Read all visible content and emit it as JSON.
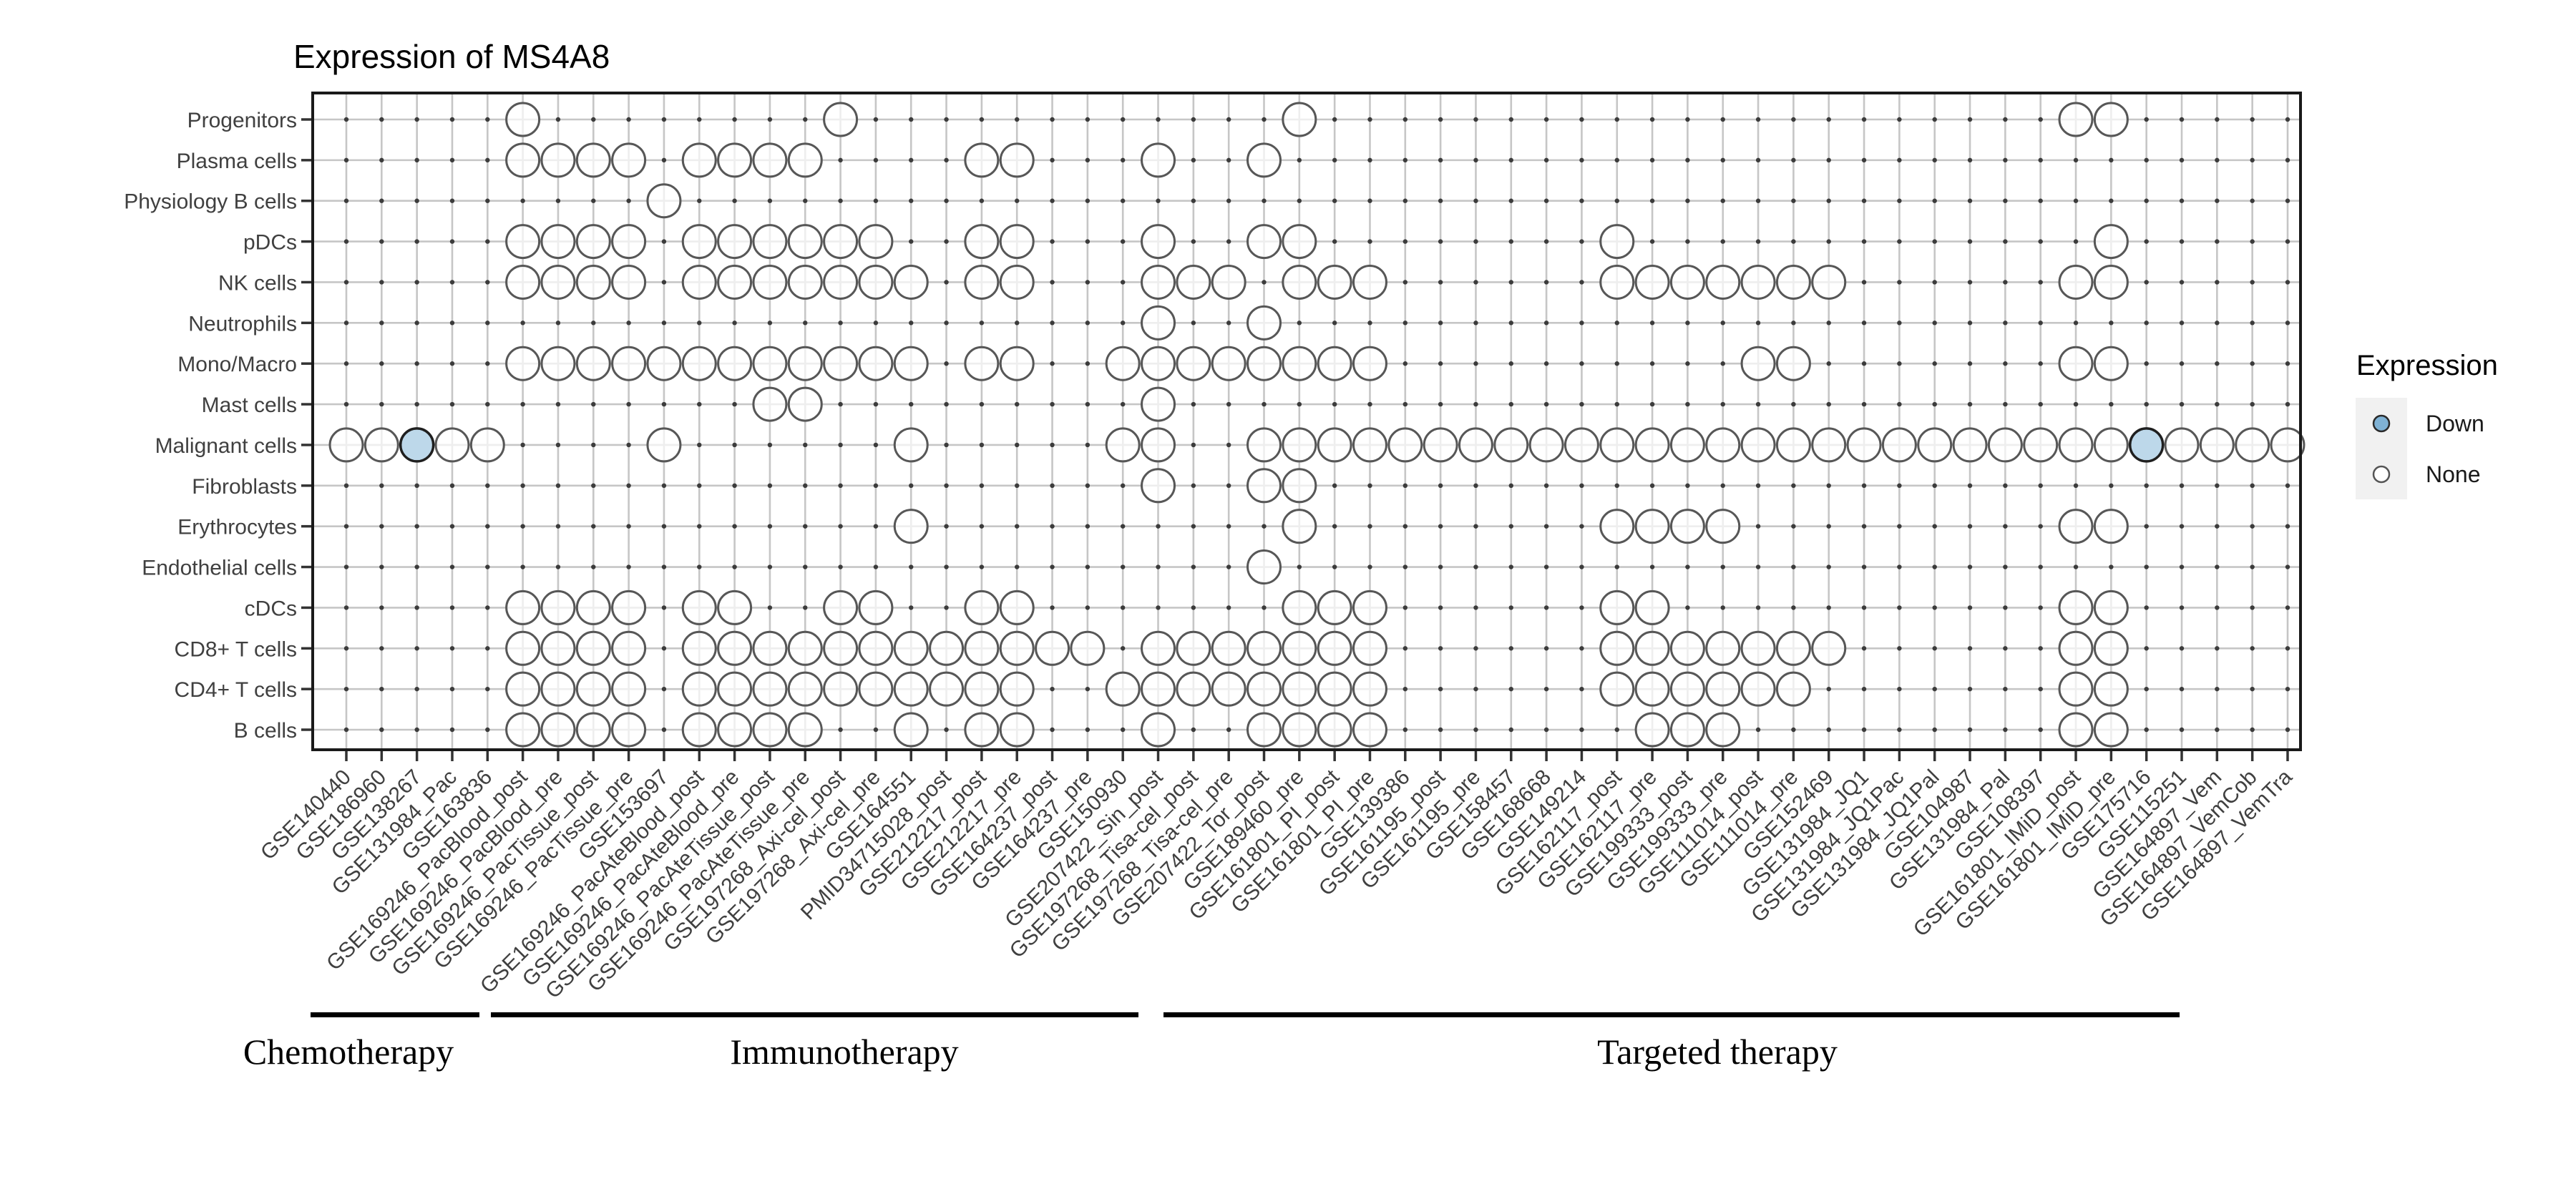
{
  "title": "Expression of MS4A8",
  "legend": {
    "title": "Expression",
    "items": [
      {
        "label": "Down",
        "color": "#7fb2d5"
      },
      {
        "label": "None",
        "color": "#ffffff"
      }
    ]
  },
  "groups": [
    {
      "label": "Chemotherapy"
    },
    {
      "label": "Immunotherapy"
    },
    {
      "label": "Targeted therapy"
    }
  ],
  "colors": {
    "panel_border": "#1a1a1a",
    "grid_line": "#c6c6c6",
    "grid_dot": "#3c3c3c",
    "circle_stroke": "#575757",
    "circle_fill": "rgba(255,255,255,0.7)",
    "down_fill": "#bdd8ea",
    "down_stroke": "#1f1f1f",
    "tick": "#333333",
    "axis_text": "#404040",
    "legend_key_bg": "#f1f1f1",
    "group_bar": "#000000"
  },
  "chart_data": {
    "type": "dot_matrix",
    "title": "Expression of MS4A8",
    "legend": {
      "title": "Expression",
      "items": [
        "Down",
        "None"
      ]
    },
    "x_categories": [
      "GSE140440",
      "GSE186960",
      "GSE138267",
      "GSE131984_Pac",
      "GSE163836",
      "GSE169246_PacBlood_post",
      "GSE169246_PacBlood_pre",
      "GSE169246_PacTissue_post",
      "GSE169246_PacTissue_pre",
      "GSE153697",
      "GSE169246_PacAteBlood_post",
      "GSE169246_PacAteBlood_pre",
      "GSE169246_PacAteTissue_post",
      "GSE169246_PacAteTissue_pre",
      "GSE197268_Axi-cel_post",
      "GSE197268_Axi-cel_pre",
      "GSE164551",
      "PMID34715028_post",
      "GSE212217_post",
      "GSE212217_pre",
      "GSE164237_post",
      "GSE164237_pre",
      "GSE150930",
      "GSE207422_Sin_post",
      "GSE197268_Tisa-cel_post",
      "GSE197268_Tisa-cel_pre",
      "GSE207422_Tor_post",
      "GSE189460_pre",
      "GSE161801_PI_post",
      "GSE161801_PI_pre",
      "GSE139386",
      "GSE161195_post",
      "GSE161195_pre",
      "GSE158457",
      "GSE168668",
      "GSE149214",
      "GSE162117_post",
      "GSE162117_pre",
      "GSE199333_post",
      "GSE199333_pre",
      "GSE111014_post",
      "GSE111014_pre",
      "GSE152469",
      "GSE131984_JQ1",
      "GSE131984_JQ1Pac",
      "GSE131984_JQ1Pal",
      "GSE104987",
      "GSE131984_Pal",
      "GSE108397",
      "GSE161801_IMiD_post",
      "GSE161801_IMiD_pre",
      "GSE175716",
      "GSE115251",
      "GSE164897_Vem",
      "GSE164897_VemCob",
      "GSE164897_VemTra"
    ],
    "y_categories": [
      "Progenitors",
      "Plasma cells",
      "Physiology B cells",
      "pDCs",
      "NK cells",
      "Neutrophils",
      "Mono/Macro",
      "Mast cells",
      "Malignant cells",
      "Fibroblasts",
      "Erythrocytes",
      "Endothelial cells",
      "cDCs",
      "CD8+ T cells",
      "CD4+ T cells",
      "B cells"
    ],
    "presence": {
      "Progenitors": [
        6,
        15,
        28,
        50,
        51
      ],
      "Plasma cells": [
        6,
        7,
        8,
        9,
        11,
        12,
        13,
        14,
        19,
        20,
        24,
        27
      ],
      "Physiology B cells": [
        10
      ],
      "pDCs": [
        6,
        7,
        8,
        9,
        11,
        12,
        13,
        14,
        15,
        16,
        19,
        20,
        24,
        27,
        28,
        37,
        51
      ],
      "NK cells": [
        6,
        7,
        8,
        9,
        11,
        12,
        13,
        14,
        15,
        16,
        17,
        19,
        20,
        24,
        25,
        26,
        28,
        29,
        30,
        37,
        38,
        39,
        40,
        41,
        42,
        43,
        50,
        51
      ],
      "Neutrophils": [
        24,
        27
      ],
      "Mono/Macro": [
        6,
        7,
        8,
        9,
        10,
        11,
        12,
        13,
        14,
        15,
        16,
        17,
        19,
        20,
        23,
        24,
        25,
        26,
        27,
        28,
        29,
        30,
        41,
        42,
        50,
        51
      ],
      "Mast cells": [
        13,
        14,
        24
      ],
      "Malignant cells": [
        1,
        2,
        3,
        4,
        5,
        10,
        17,
        23,
        24,
        27,
        28,
        29,
        30,
        31,
        32,
        33,
        34,
        35,
        36,
        37,
        38,
        39,
        40,
        41,
        42,
        43,
        44,
        45,
        46,
        47,
        48,
        49,
        50,
        51,
        52,
        53,
        54,
        55,
        56
      ],
      "Fibroblasts": [
        24,
        27,
        28
      ],
      "Erythrocytes": [
        17,
        28,
        37,
        38,
        39,
        40,
        50,
        51
      ],
      "Endothelial cells": [
        27
      ],
      "cDCs": [
        6,
        7,
        8,
        9,
        11,
        12,
        15,
        16,
        19,
        20,
        28,
        29,
        30,
        37,
        38,
        50,
        51
      ],
      "CD8+ T cells": [
        6,
        7,
        8,
        9,
        11,
        12,
        13,
        14,
        15,
        16,
        17,
        18,
        19,
        20,
        21,
        22,
        24,
        25,
        26,
        27,
        28,
        29,
        30,
        37,
        38,
        39,
        40,
        41,
        42,
        43,
        50,
        51
      ],
      "CD4+ T cells": [
        6,
        7,
        8,
        9,
        11,
        12,
        13,
        14,
        15,
        16,
        17,
        18,
        19,
        20,
        23,
        24,
        25,
        26,
        27,
        28,
        29,
        30,
        37,
        38,
        39,
        40,
        41,
        42,
        50,
        51
      ],
      "B cells": [
        6,
        7,
        8,
        9,
        11,
        12,
        13,
        14,
        17,
        19,
        20,
        24,
        27,
        28,
        29,
        30,
        38,
        39,
        40,
        50,
        51
      ]
    },
    "down": [
      {
        "y": "Malignant cells",
        "x": "GSE138267"
      },
      {
        "y": "Malignant cells",
        "x": "GSE175716"
      }
    ],
    "x_groups": [
      {
        "label": "Chemotherapy",
        "from": "GSE140440",
        "to": "GSE163836"
      },
      {
        "label": "Immunotherapy",
        "from": "GSE169246_PacBlood_post",
        "to": "GSE150930"
      },
      {
        "label": "Targeted therapy",
        "from": "GSE207422_Sin_post",
        "to": "GSE115251"
      }
    ]
  }
}
